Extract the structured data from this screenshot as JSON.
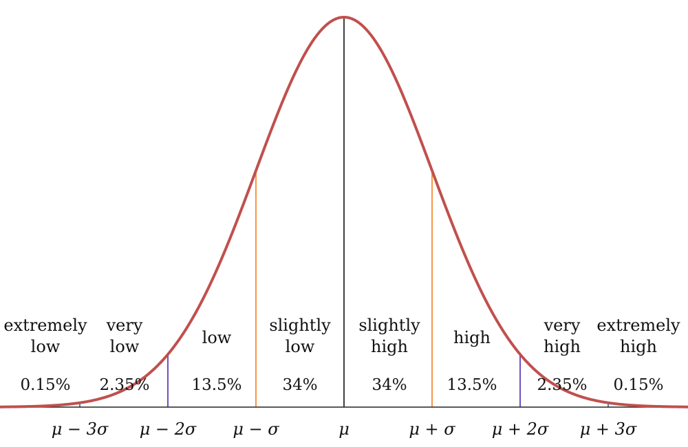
{
  "colors": {
    "curve": "#c0504d",
    "baseline": "#222222",
    "mean_line": "#000000",
    "one_sigma_line": "#f79646",
    "two_sigma_line": "#7050c0",
    "three_sigma_tick": "#4f81bd"
  },
  "regions": [
    {
      "lines": [
        "extremely",
        "low"
      ],
      "percent": "0.15%"
    },
    {
      "lines": [
        "very",
        "low"
      ],
      "percent": "2.35%"
    },
    {
      "lines": [
        "low"
      ],
      "percent": "13.5%"
    },
    {
      "lines": [
        "slightly",
        "low"
      ],
      "percent": "34%"
    },
    {
      "lines": [
        "slightly",
        "high"
      ],
      "percent": "34%"
    },
    {
      "lines": [
        "high"
      ],
      "percent": "13.5%"
    },
    {
      "lines": [
        "very",
        "high"
      ],
      "percent": "2.35%"
    },
    {
      "lines": [
        "extremely",
        "high"
      ],
      "percent": "0.15%"
    }
  ],
  "ticks": [
    {
      "sigma": -3,
      "label": "μ − 3σ"
    },
    {
      "sigma": -2,
      "label": "μ − 2σ"
    },
    {
      "sigma": -1,
      "label": "μ − σ"
    },
    {
      "sigma": 0,
      "label": "μ"
    },
    {
      "sigma": 1,
      "label": "μ + σ"
    },
    {
      "sigma": 2,
      "label": "μ + 2σ"
    },
    {
      "sigma": 3,
      "label": "μ + 3σ"
    }
  ]
}
